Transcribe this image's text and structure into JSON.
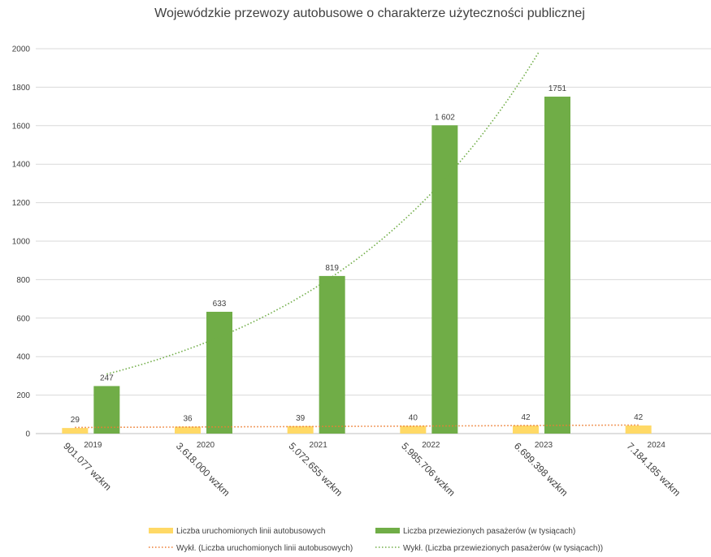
{
  "chart_data": {
    "type": "bar",
    "title": "Wojewódzkie przewozy autobusowe o charakterze użyteczności publicznej",
    "categories": [
      "2019",
      "2020",
      "2021",
      "2022",
      "2023",
      "2024"
    ],
    "category_sublabels": [
      "901.077 wzkm",
      "3.618.000 wzkm",
      "5.072.655 wzkm",
      "5.985.706 wzkm",
      "6.699.398 wzkm",
      "7.184.185 wzkm"
    ],
    "ylim": [
      0,
      2000
    ],
    "yticks": [
      0,
      200,
      400,
      600,
      800,
      1000,
      1200,
      1400,
      1600,
      1800,
      2000
    ],
    "grid": true,
    "legend_position": "bottom",
    "series": [
      {
        "name": "Liczba uruchomionych linii autobusowych",
        "color": "#FFD966",
        "values": [
          29,
          36,
          39,
          40,
          42,
          42
        ],
        "labels": [
          "29",
          "36",
          "39",
          "40",
          "42",
          "42"
        ]
      },
      {
        "name": "Liczba przewiezionych pasażerów (w tysiącach)",
        "color": "#70AD47",
        "values": [
          247,
          633,
          819,
          1602,
          1751,
          null
        ],
        "labels": [
          "247",
          "633",
          "819",
          "1 602",
          "1751",
          ""
        ]
      }
    ],
    "trendlines": [
      {
        "name": "Wykł. (Liczba uruchomionych linii autobusowych)",
        "series": 0,
        "type": "exponential",
        "color": "#ED7D31"
      },
      {
        "name": "Wykł. (Liczba przewiezionych pasażerów (w tysiącach))",
        "series": 1,
        "type": "exponential",
        "color": "#70AD47"
      }
    ]
  }
}
